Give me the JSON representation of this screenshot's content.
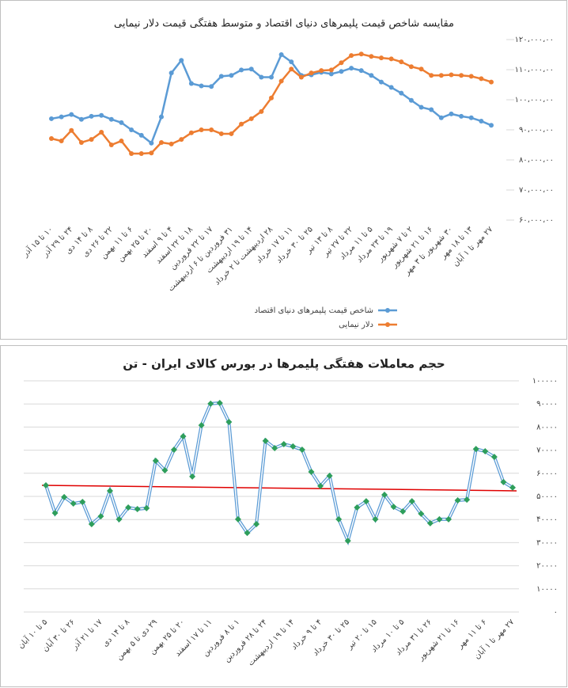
{
  "chart_data": [
    {
      "type": "line",
      "title": "مقایسه شاخص قیمت پلیمرهای دنیای اقتصاد و متوسط هفتگی قیمت دلار نیمایی",
      "categories": [
        "۱۰ تا ۱۵ آذر",
        null,
        "۲۴ تا ۲۹ آذر",
        null,
        "۸ تا ۱۴ دی",
        null,
        "۲۲ تا ۲۶ دی",
        null,
        "۶ تا ۱۱ بهمن",
        null,
        "۲۰ تا ۲۵ بهمن",
        null,
        "۴ تا ۹ اسفند",
        null,
        "۱۸ تا ۲۲ اسفند",
        null,
        "۱۷ تا ۲۲ فروردین",
        null,
        "۳۱ فروردین تا ۶ اردیبهشت",
        null,
        "۱۴ تا ۱۹ اردیبهشت",
        null,
        "۲۸ اردیبهشت تا ۲ خرداد",
        null,
        "۱۱ تا ۱۷ خرداد",
        null,
        "۲۵ تا ۳۰ خرداد",
        null,
        "۸ تا ۱۳ تیر",
        null,
        "۲۲ تا ۲۷ تیر",
        null,
        "۵ تا ۱۱ مرداد",
        null,
        "۱۹ تا ۲۳ مرداد",
        null,
        "۲ تا ۷ شهریور",
        null,
        "۱۶ تا ۲۱ شهریور",
        null,
        "۳۰ شهریور تا ۳ مهر",
        null,
        "۱۳ تا ۱۸ مهر",
        null,
        "۲۷ مهر تا ۱ آبان"
      ],
      "series": [
        {
          "name": "شاخص قیمت پلیمرهای دنیای اقتصاد",
          "color": "#5b9bd5",
          "values": [
            9370000,
            9430000,
            9510000,
            9350000,
            9450000,
            9480000,
            9350000,
            9240000,
            9000000,
            8820000,
            8560000,
            9430000,
            10890000,
            11310000,
            10540000,
            10460000,
            10440000,
            10780000,
            10810000,
            10990000,
            11020000,
            10750000,
            10750000,
            11500000,
            11260000,
            10810000,
            10830000,
            10910000,
            10860000,
            10940000,
            11050000,
            10970000,
            10810000,
            10590000,
            10410000,
            10220000,
            9980000,
            9750000,
            9670000,
            9400000,
            9530000,
            9450000,
            9400000,
            9290000,
            9150000
          ]
        },
        {
          "name": "دلار نیمایی",
          "color": "#ed7d31",
          "values": [
            8710000,
            8630000,
            8980000,
            8580000,
            8680000,
            8920000,
            8500000,
            8630000,
            8210000,
            8210000,
            8230000,
            8580000,
            8530000,
            8680000,
            8900000,
            9000000,
            9000000,
            8870000,
            8870000,
            9190000,
            9370000,
            9610000,
            10060000,
            10620000,
            11020000,
            10750000,
            10890000,
            10970000,
            10990000,
            11230000,
            11470000,
            11520000,
            11440000,
            11390000,
            11360000,
            11260000,
            11100000,
            11020000,
            10810000,
            10810000,
            10830000,
            10810000,
            10780000,
            10700000,
            10590000
          ]
        }
      ],
      "ylim": [
        6000000,
        12000000
      ],
      "yticks": [
        {
          "value": 6000000,
          "label": "۶۰،۰۰۰،۰۰"
        },
        {
          "value": 7000000,
          "label": "۷۰،۰۰۰،۰۰"
        },
        {
          "value": 8000000,
          "label": "۸۰،۰۰۰،۰۰"
        },
        {
          "value": 9000000,
          "label": "۹۰،۰۰۰،۰۰"
        },
        {
          "value": 10000000,
          "label": "۱۰۰،۰۰۰،۰۰"
        },
        {
          "value": 11000000,
          "label": "۱۱۰،۰۰۰،۰۰"
        },
        {
          "value": 12000000,
          "label": "۱۲۰،۰۰۰،۰۰"
        }
      ],
      "grid": false,
      "markers": "circle",
      "legend": "bottom"
    },
    {
      "type": "line",
      "title": "حجم معاملات هفتگی پلیمرها در بورس کالای ایران - تن",
      "categories": [
        "۵ تا ۱۰ آبان",
        null,
        null,
        "۲۶ تا ۳۰ آبان",
        null,
        null,
        "۱۷ تا ۲۱ آذر",
        null,
        null,
        "۸ تا ۱۴ دی",
        null,
        null,
        "۲۹ دی تا ۵ بهمن",
        null,
        null,
        "۲۰ تا ۲۵ بهمن",
        null,
        null,
        "۱۱ تا ۱۷ اسفند",
        null,
        null,
        "۱ تا ۸ فروردین",
        null,
        null,
        "۲۴ تا ۲۸ فروردین",
        null,
        null,
        "۱۴ تا ۱۹ اردیبهشت",
        null,
        null,
        "۴ تا ۹ خرداد",
        null,
        null,
        "۲۵ تا ۳۰ خرداد",
        null,
        null,
        "۱۵ تا ۲۰ تیر",
        null,
        null,
        "۵ تا ۱۰ مرداد",
        null,
        null,
        "۲۶ تا ۳۱ مرداد",
        null,
        null,
        "۱۶ تا ۲۱ شهریور",
        null,
        null,
        "۶ تا ۱۱ مهر",
        null,
        null,
        "۲۷ مهر تا ۱ آبان"
      ],
      "series": [
        {
          "name": "حجم معاملات",
          "color": "#5b9bd5",
          "marker_color": "#2e9e5b",
          "values": [
            54800,
            42800,
            49700,
            46900,
            47600,
            38000,
            41400,
            52400,
            40100,
            45200,
            44500,
            44900,
            65400,
            61300,
            70200,
            76000,
            58600,
            80800,
            90100,
            90400,
            82200,
            40100,
            34200,
            38000,
            74000,
            70900,
            72600,
            71600,
            70200,
            60600,
            54500,
            58900,
            40100,
            30800,
            45200,
            47900,
            40100,
            50700,
            45500,
            43500,
            47900,
            42500,
            38400,
            40100,
            40100,
            48300,
            48600,
            70500,
            69500,
            67100,
            56200,
            53800
          ]
        }
      ],
      "trendline": {
        "color": "#e00000",
        "values": [
          54800,
          52400
        ]
      },
      "ylim": [
        0,
        100000
      ],
      "yticks": [
        {
          "value": 0,
          "label": "۰"
        },
        {
          "value": 10000,
          "label": "۱۰۰۰۰"
        },
        {
          "value": 20000,
          "label": "۲۰۰۰۰"
        },
        {
          "value": 30000,
          "label": "۳۰۰۰۰"
        },
        {
          "value": 40000,
          "label": "۴۰۰۰۰"
        },
        {
          "value": 50000,
          "label": "۵۰۰۰۰"
        },
        {
          "value": 60000,
          "label": "۶۰۰۰۰"
        },
        {
          "value": 70000,
          "label": "۷۰۰۰۰"
        },
        {
          "value": 80000,
          "label": "۸۰۰۰۰"
        },
        {
          "value": 90000,
          "label": "۹۰۰۰۰"
        },
        {
          "value": 100000,
          "label": "۱۰۰۰۰۰"
        }
      ],
      "grid": true,
      "markers": "diamond"
    }
  ]
}
